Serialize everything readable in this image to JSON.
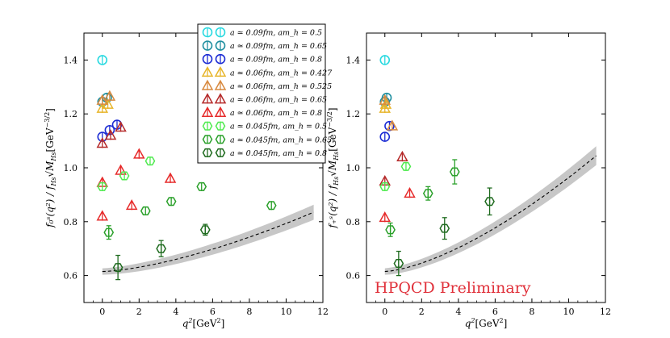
{
  "chart_data": [
    {
      "type": "scatter",
      "panel": "left",
      "xlabel": "q^2[GeV^2]",
      "ylabel": "f_0^s(q^2)/f_{H_s}√M_{H_s}[GeV^{-3/2}]",
      "ylabel_parts": {
        "main": "f₀ˢ(q²) / f",
        "sub": "Hs",
        "root": "√M",
        "root_sub": "Hs",
        "unit": "[GeV",
        "unit_sup": "−3/2",
        "close": "]"
      },
      "xlim": [
        -1,
        12
      ],
      "ylim": [
        0.5,
        1.5
      ],
      "xticks": [
        0,
        2,
        4,
        6,
        8,
        10,
        12
      ],
      "yticks": [
        0.6,
        0.8,
        1.0,
        1.2,
        1.4
      ],
      "xticklabels": [
        "0",
        "2",
        "4",
        "6",
        "8",
        "10",
        "12"
      ],
      "yticklabels": [
        "0.6",
        "0.8",
        "1.0",
        "1.2",
        "1.4"
      ],
      "legend_position": "top-right",
      "series": [
        {
          "name": "a ≃ 0.09fm, am_h = 0.5",
          "color": "#29d9e0",
          "marker": "circle",
          "points": [
            [
              0.0,
              1.4,
              0.0
            ]
          ]
        },
        {
          "name": "a ≃ 0.09fm, am_h = 0.65",
          "color": "#1f8fa0",
          "marker": "circle",
          "points": [
            [
              0.0,
              1.245,
              0.0
            ],
            [
              0.25,
              1.26,
              0.0
            ]
          ]
        },
        {
          "name": "a ≃ 0.09fm, am_h = 0.8",
          "color": "#1c2cd4",
          "marker": "circle",
          "points": [
            [
              0.0,
              1.115,
              0.0
            ],
            [
              0.4,
              1.14,
              0.0
            ],
            [
              0.8,
              1.16,
              0.0
            ]
          ]
        },
        {
          "name": "a ≃ 0.06fm, am_h = 0.427",
          "color": "#e7b52a",
          "marker": "triangle",
          "points": [
            [
              0.0,
              1.22,
              0.0
            ],
            [
              0.3,
              1.235,
              0.0
            ]
          ]
        },
        {
          "name": "a ≃ 0.06fm, am_h = 0.525",
          "color": "#d88a40",
          "marker": "triangle",
          "points": [
            [
              0.0,
              1.25,
              0.0
            ],
            [
              0.4,
              1.265,
              0.0
            ]
          ]
        },
        {
          "name": "a ≃ 0.06fm, am_h = 0.65",
          "color": "#b52a2a",
          "marker": "triangle",
          "points": [
            [
              0.0,
              1.09,
              0.0
            ],
            [
              0.45,
              1.12,
              0.0
            ],
            [
              1.0,
              1.15,
              0.0
            ]
          ]
        },
        {
          "name": "a ≃ 0.06fm, am_h = 0.8",
          "color": "#e62b2b",
          "marker": "triangle",
          "points": [
            [
              0.0,
              0.945,
              0.0
            ],
            [
              0.0,
              0.82,
              0.0
            ],
            [
              1.0,
              0.99,
              0.0
            ],
            [
              1.6,
              0.86,
              0.0
            ],
            [
              2.0,
              1.05,
              0.0
            ],
            [
              3.7,
              0.96,
              0.0
            ]
          ]
        },
        {
          "name": "a ≃ 0.045fm, am_h = 0.5",
          "color": "#4fea4f",
          "marker": "hexagon",
          "points": [
            [
              0.0,
              0.93,
              0.0
            ],
            [
              1.2,
              0.97,
              0.0
            ],
            [
              2.6,
              1.025,
              0.0
            ]
          ]
        },
        {
          "name": "a ≃ 0.045fm, am_h = 0.65",
          "color": "#2aa02a",
          "marker": "hexagon",
          "points": [
            [
              0.35,
              0.76,
              0.025
            ],
            [
              2.35,
              0.84,
              0.0
            ],
            [
              3.75,
              0.875,
              0.0
            ],
            [
              5.4,
              0.93,
              0.0
            ],
            [
              9.2,
              0.86,
              0.0
            ]
          ]
        },
        {
          "name": "a ≃ 0.045fm, am_h = 0.8",
          "color": "#1f6b1f",
          "marker": "hexagon",
          "points": [
            [
              0.85,
              0.63,
              0.045
            ],
            [
              3.2,
              0.7,
              0.03
            ],
            [
              5.6,
              0.77,
              0.02
            ]
          ]
        }
      ],
      "fit_band": {
        "x": [
          0,
          11.5
        ],
        "y0": 0.615,
        "y1": 0.835,
        "halfwidth0": 0.012,
        "halfwidth1": 0.028,
        "style": "dashed"
      }
    },
    {
      "type": "scatter",
      "panel": "right",
      "xlabel": "q^2[GeV^2]",
      "ylabel": "f_+^s(q^2)/f_{H_s}√M_{H_s}[GeV^{-3/2}]",
      "ylabel_parts": {
        "main": "f₊ˢ(q²) / f",
        "sub": "Hs",
        "root": "√M",
        "root_sub": "Hs",
        "unit": "[GeV",
        "unit_sup": "−3/2",
        "close": "]"
      },
      "xlim": [
        -1,
        12
      ],
      "ylim": [
        0.5,
        1.5
      ],
      "xticks": [
        0,
        2,
        4,
        6,
        8,
        10,
        12
      ],
      "yticks": [
        0.6,
        0.8,
        1.0,
        1.2,
        1.4
      ],
      "xticklabels": [
        "0",
        "2",
        "4",
        "6",
        "8",
        "10",
        "12"
      ],
      "yticklabels": [
        "0.6",
        "0.8",
        "1.0",
        "1.2",
        "1.4"
      ],
      "annotation": "HPQCD Preliminary",
      "series": [
        {
          "name": "a ≃ 0.09fm, am_h = 0.5",
          "color": "#29d9e0",
          "marker": "circle",
          "points": [
            [
              0.0,
              1.4,
              0.0
            ]
          ]
        },
        {
          "name": "a ≃ 0.09fm, am_h = 0.65",
          "color": "#1f8fa0",
          "marker": "circle",
          "points": [
            [
              0.0,
              1.245,
              0.0
            ],
            [
              0.1,
              1.26,
              0.0
            ]
          ]
        },
        {
          "name": "a ≃ 0.09fm, am_h = 0.8",
          "color": "#1c2cd4",
          "marker": "circle",
          "points": [
            [
              0.0,
              1.115,
              0.0
            ],
            [
              0.25,
              1.155,
              0.0
            ]
          ]
        },
        {
          "name": "a ≃ 0.06fm, am_h = 0.427",
          "color": "#e7b52a",
          "marker": "triangle",
          "points": [
            [
              0.0,
              1.22,
              0.0
            ],
            [
              0.05,
              1.235,
              0.0
            ]
          ]
        },
        {
          "name": "a ≃ 0.06fm, am_h = 0.525",
          "color": "#d88a40",
          "marker": "triangle",
          "points": [
            [
              0.0,
              1.25,
              0.0
            ],
            [
              0.4,
              1.155,
              0.0
            ]
          ]
        },
        {
          "name": "a ≃ 0.06fm, am_h = 0.65",
          "color": "#b52a2a",
          "marker": "triangle",
          "points": [
            [
              0.0,
              0.95,
              0.0
            ],
            [
              0.95,
              1.04,
              0.0
            ]
          ]
        },
        {
          "name": "a ≃ 0.06fm, am_h = 0.8",
          "color": "#e62b2b",
          "marker": "triangle",
          "points": [
            [
              0.0,
              0.815,
              0.0
            ],
            [
              1.35,
              0.905,
              0.0
            ]
          ]
        },
        {
          "name": "a ≃ 0.045fm, am_h = 0.5",
          "color": "#4fea4f",
          "marker": "hexagon",
          "points": [
            [
              0.0,
              0.93,
              0.0
            ],
            [
              1.15,
              1.005,
              0.0
            ]
          ]
        },
        {
          "name": "a ≃ 0.045fm, am_h = 0.65",
          "color": "#2aa02a",
          "marker": "hexagon",
          "points": [
            [
              0.3,
              0.77,
              0.025
            ],
            [
              2.35,
              0.905,
              0.025
            ],
            [
              3.8,
              0.985,
              0.045
            ]
          ]
        },
        {
          "name": "a ≃ 0.045fm, am_h = 0.8",
          "color": "#1f6b1f",
          "marker": "hexagon",
          "points": [
            [
              0.75,
              0.645,
              0.045
            ],
            [
              3.25,
              0.775,
              0.04
            ],
            [
              5.7,
              0.875,
              0.05
            ]
          ]
        }
      ],
      "fit_band": {
        "x": [
          0,
          11.5
        ],
        "y0": 0.615,
        "y1": 1.045,
        "halfwidth0": 0.012,
        "halfwidth1": 0.035,
        "style": "dashed"
      }
    }
  ]
}
